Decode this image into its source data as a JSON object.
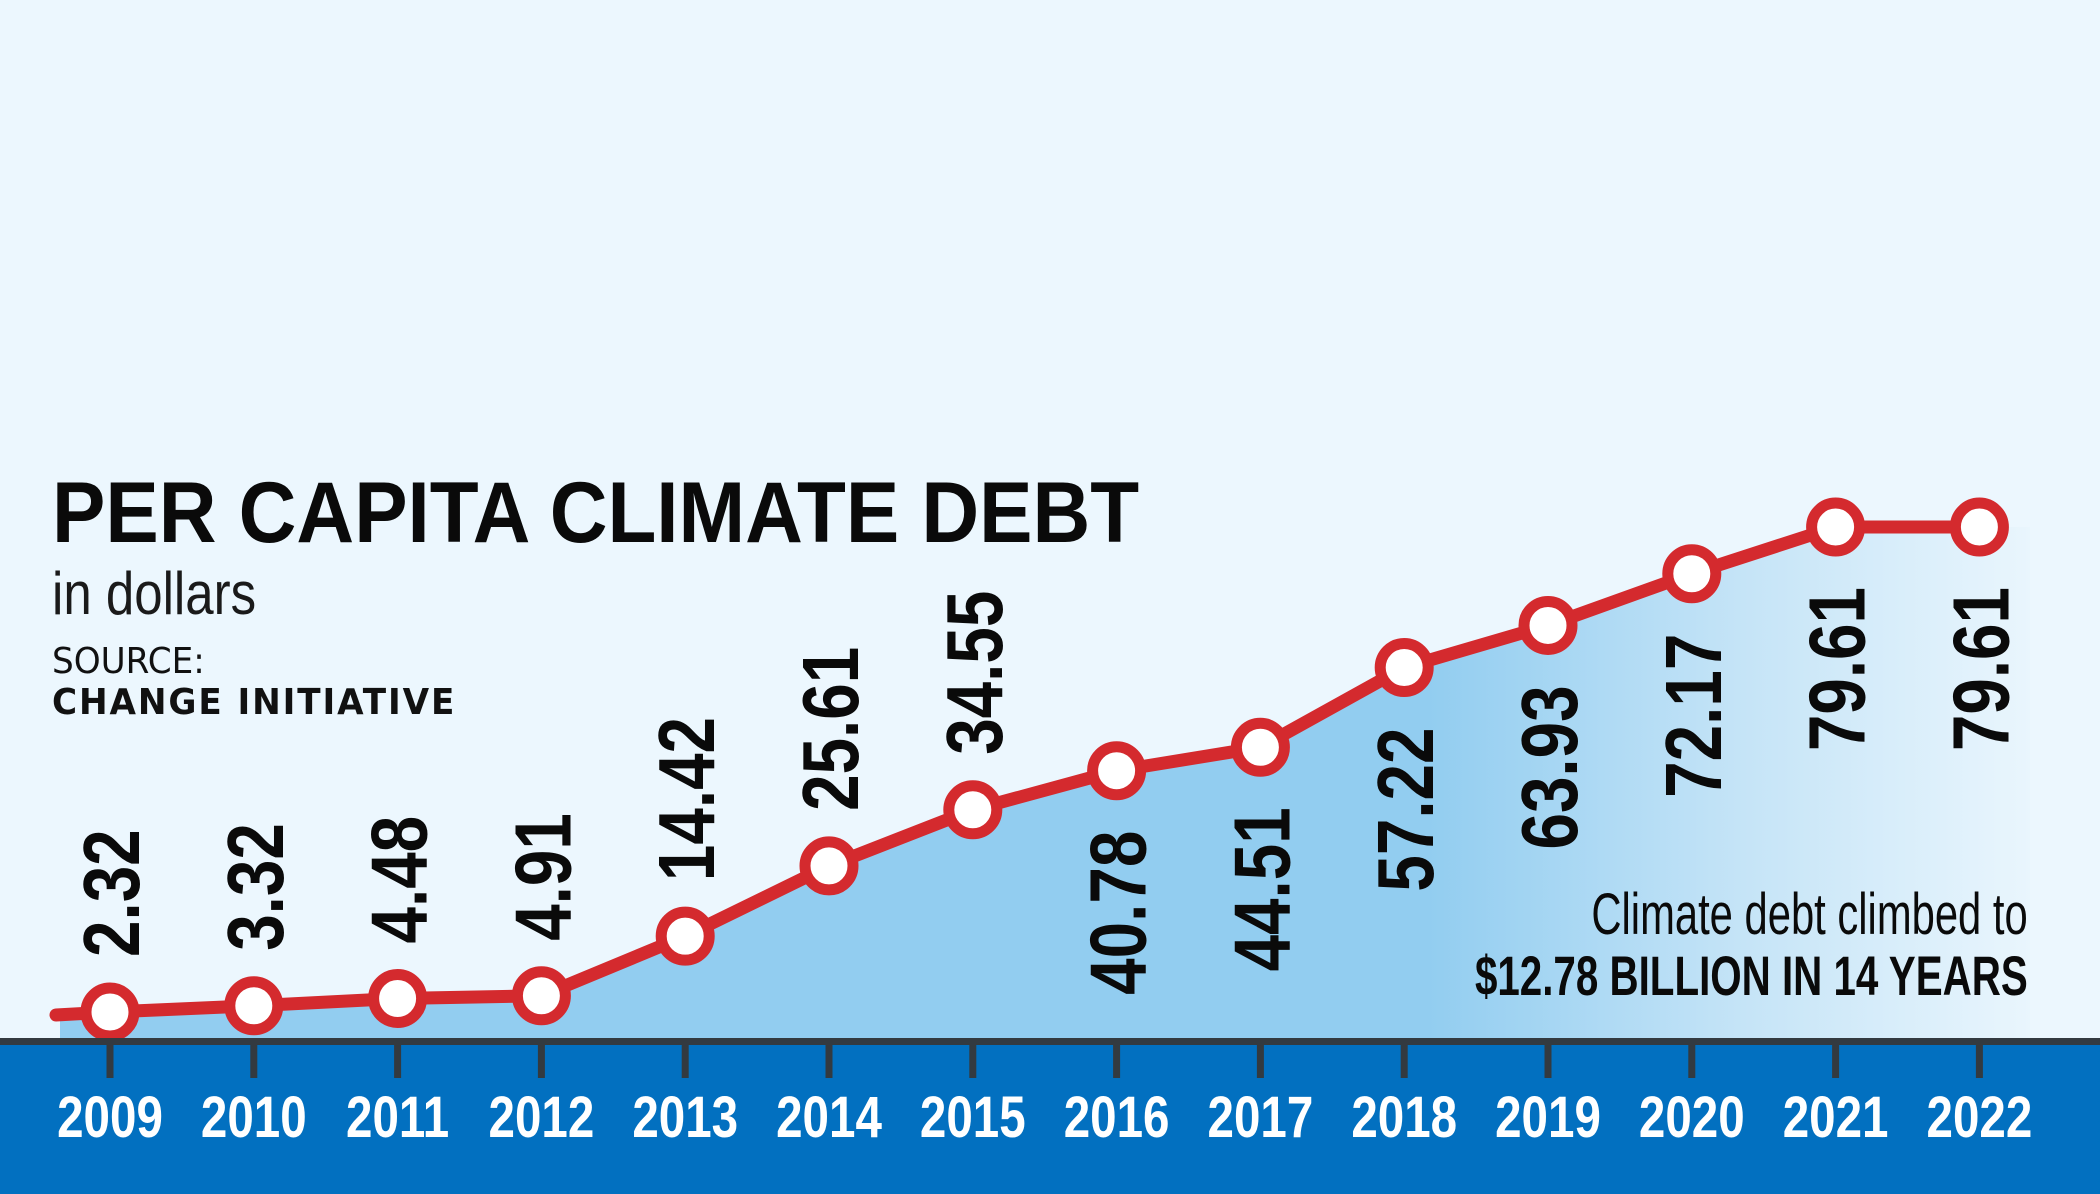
{
  "header": {
    "title": "PER CAPITA CLIMATE DEBT",
    "subtitle": "in dollars",
    "source_label": "SOURCE:",
    "source_name": "CHANGE INITIATIVE"
  },
  "annotation": {
    "line1": "Climate debt climbed to",
    "line2_amount": "$12.78",
    "line2_rest": "BILLION IN 14 YEARS"
  },
  "colors": {
    "background": "#ECF7FE",
    "area_fill": "#92CDF0",
    "line": "#D42A2E",
    "marker_fill": "#FFFFFF",
    "axis_band": "#0270C0",
    "axis_line": "#333A40",
    "label_text": "#0A0A0A",
    "year_text": "#FFFFFF"
  },
  "chart_data": {
    "type": "line",
    "title": "PER CAPITA CLIMATE DEBT",
    "subtitle": "in dollars",
    "xlabel": "",
    "ylabel": "in dollars",
    "categories": [
      "2009",
      "2010",
      "2011",
      "2012",
      "2013",
      "2014",
      "2015",
      "2016",
      "2017",
      "2018",
      "2019",
      "2020",
      "2021",
      "2022"
    ],
    "values": [
      2.32,
      3.32,
      4.48,
      4.91,
      14.42,
      25.61,
      34.55,
      40.78,
      44.51,
      57.22,
      63.93,
      72.17,
      79.61,
      79.61
    ],
    "labels": [
      "2.32",
      "3.32",
      "4.48",
      "4.91",
      "14.42",
      "25.61",
      "34.55",
      "40.78",
      "44.51",
      "57.22",
      "63.93",
      "72.17",
      "79.61",
      "79.61"
    ],
    "label_position": [
      "above",
      "above",
      "above",
      "above",
      "above",
      "above",
      "above",
      "below",
      "below",
      "below",
      "below",
      "below",
      "below",
      "below"
    ],
    "area_filled": true,
    "grid": false,
    "legend": null,
    "source": "CHANGE INITIATIVE",
    "annotation": "Climate debt climbed to $12.78 BILLION IN 14 YEARS"
  }
}
